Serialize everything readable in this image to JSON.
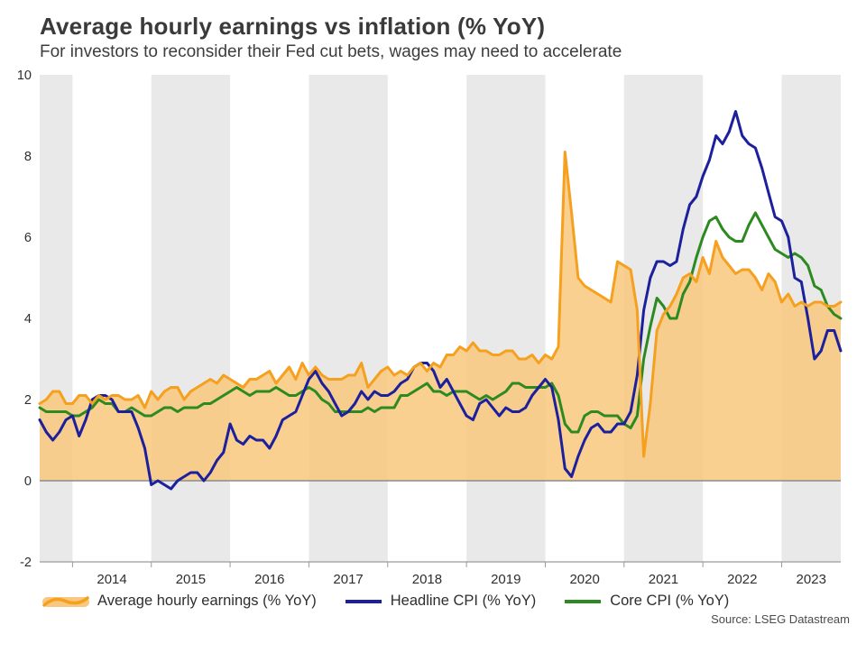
{
  "chart_data": {
    "type": "line",
    "title": "Average hourly earnings vs inflation (% YoY)",
    "subtitle": "For investors to reconsider their Fed cut bets, wages may need to accelerate",
    "source": "Source: LSEG Datastream",
    "x_unit": "monthly",
    "x_start": {
      "year": 2013,
      "month": 8
    },
    "x_end": {
      "year": 2023,
      "month": 10
    },
    "x_tick_labels": [
      "2014",
      "2015",
      "2016",
      "2017",
      "2018",
      "2019",
      "2020",
      "2021",
      "2022",
      "2023"
    ],
    "ylim": [
      -2,
      10
    ],
    "y_ticks": [
      -2,
      0,
      2,
      4,
      6,
      8,
      10
    ],
    "legend_position": "bottom",
    "grid": {
      "zero_line": true,
      "zero_line_color": "#8c8c8c",
      "axis_color": "#9a9a9a",
      "band_color": "#e9e9e9",
      "shaded_years": [
        2013,
        2015,
        2017,
        2019,
        2021,
        2023
      ]
    },
    "series": [
      {
        "name": "Average hourly earnings (% YoY)",
        "style": "area-line",
        "color": "#F5A01E",
        "fill": "#F9C87E",
        "values": [
          1.9,
          2.0,
          2.2,
          2.2,
          1.9,
          1.9,
          2.1,
          2.1,
          1.9,
          2.1,
          2.0,
          2.1,
          2.1,
          2.0,
          2.0,
          2.1,
          1.8,
          2.2,
          2.0,
          2.2,
          2.3,
          2.3,
          2.0,
          2.2,
          2.3,
          2.4,
          2.5,
          2.4,
          2.6,
          2.5,
          2.4,
          2.3,
          2.5,
          2.5,
          2.6,
          2.7,
          2.4,
          2.6,
          2.8,
          2.5,
          2.9,
          2.6,
          2.8,
          2.6,
          2.5,
          2.5,
          2.5,
          2.6,
          2.6,
          2.9,
          2.3,
          2.5,
          2.7,
          2.8,
          2.6,
          2.7,
          2.6,
          2.8,
          2.9,
          2.7,
          2.9,
          2.8,
          3.1,
          3.1,
          3.3,
          3.2,
          3.4,
          3.2,
          3.2,
          3.1,
          3.1,
          3.2,
          3.2,
          3.0,
          3.0,
          3.1,
          2.9,
          3.1,
          3.0,
          3.3,
          8.1,
          6.6,
          5.0,
          4.8,
          4.7,
          4.6,
          4.5,
          4.4,
          5.4,
          5.3,
          5.2,
          4.2,
          0.6,
          1.9,
          3.7,
          4.1,
          4.3,
          4.6,
          5.0,
          5.1,
          4.9,
          5.5,
          5.1,
          5.9,
          5.5,
          5.3,
          5.1,
          5.2,
          5.2,
          5.0,
          4.7,
          5.1,
          4.9,
          4.4,
          4.6,
          4.3,
          4.4,
          4.3,
          4.4,
          4.4,
          4.3,
          4.3,
          4.4
        ]
      },
      {
        "name": "Headline CPI (% YoY)",
        "style": "line",
        "color": "#1C209C",
        "values": [
          1.5,
          1.2,
          1.0,
          1.2,
          1.5,
          1.6,
          1.1,
          1.5,
          2.0,
          2.1,
          2.1,
          2.0,
          1.7,
          1.7,
          1.7,
          1.3,
          0.8,
          -0.1,
          0.0,
          -0.1,
          -0.2,
          0.0,
          0.1,
          0.2,
          0.2,
          0.0,
          0.2,
          0.5,
          0.7,
          1.4,
          1.0,
          0.9,
          1.1,
          1.0,
          1.0,
          0.8,
          1.1,
          1.5,
          1.6,
          1.7,
          2.1,
          2.5,
          2.7,
          2.4,
          2.2,
          1.9,
          1.6,
          1.7,
          1.9,
          2.2,
          2.0,
          2.2,
          2.1,
          2.1,
          2.2,
          2.4,
          2.5,
          2.8,
          2.9,
          2.9,
          2.7,
          2.3,
          2.5,
          2.2,
          1.9,
          1.6,
          1.5,
          1.9,
          2.0,
          1.8,
          1.6,
          1.8,
          1.7,
          1.7,
          1.8,
          2.1,
          2.3,
          2.5,
          2.3,
          1.5,
          0.3,
          0.1,
          0.6,
          1.0,
          1.3,
          1.4,
          1.2,
          1.2,
          1.4,
          1.4,
          1.7,
          2.6,
          4.2,
          5.0,
          5.4,
          5.4,
          5.3,
          5.4,
          6.2,
          6.8,
          7.0,
          7.5,
          7.9,
          8.5,
          8.3,
          8.6,
          9.1,
          8.5,
          8.3,
          8.2,
          7.7,
          7.1,
          6.5,
          6.4,
          6.0,
          5.0,
          4.9,
          4.0,
          3.0,
          3.2,
          3.7,
          3.7,
          3.2
        ]
      },
      {
        "name": "Core CPI (% YoY)",
        "style": "line",
        "color": "#2D8A20",
        "values": [
          1.8,
          1.7,
          1.7,
          1.7,
          1.7,
          1.6,
          1.6,
          1.7,
          1.8,
          2.0,
          1.9,
          1.9,
          1.7,
          1.7,
          1.8,
          1.7,
          1.6,
          1.6,
          1.7,
          1.8,
          1.8,
          1.7,
          1.8,
          1.8,
          1.8,
          1.9,
          1.9,
          2.0,
          2.1,
          2.2,
          2.3,
          2.2,
          2.1,
          2.2,
          2.2,
          2.2,
          2.3,
          2.2,
          2.1,
          2.1,
          2.2,
          2.3,
          2.2,
          2.0,
          1.9,
          1.7,
          1.7,
          1.7,
          1.7,
          1.7,
          1.8,
          1.7,
          1.8,
          1.8,
          1.8,
          2.1,
          2.1,
          2.2,
          2.3,
          2.4,
          2.2,
          2.2,
          2.1,
          2.2,
          2.2,
          2.2,
          2.1,
          2.0,
          2.1,
          2.0,
          2.1,
          2.2,
          2.4,
          2.4,
          2.3,
          2.3,
          2.3,
          2.3,
          2.4,
          2.1,
          1.4,
          1.2,
          1.2,
          1.6,
          1.7,
          1.7,
          1.6,
          1.6,
          1.6,
          1.4,
          1.3,
          1.6,
          3.0,
          3.8,
          4.5,
          4.3,
          4.0,
          4.0,
          4.6,
          4.9,
          5.5,
          6.0,
          6.4,
          6.5,
          6.2,
          6.0,
          5.9,
          5.9,
          6.3,
          6.6,
          6.3,
          6.0,
          5.7,
          5.6,
          5.5,
          5.6,
          5.5,
          5.3,
          4.8,
          4.7,
          4.3,
          4.1,
          4.0
        ]
      }
    ]
  }
}
